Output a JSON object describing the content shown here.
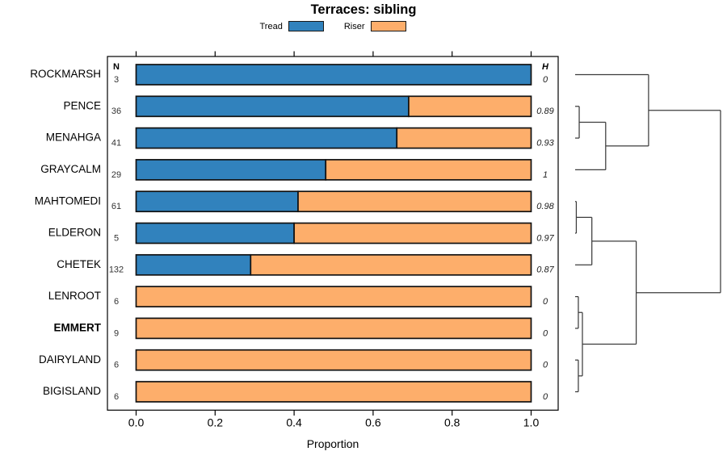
{
  "title": "Terraces: sibling",
  "xlabel": "Proportion",
  "legend": {
    "items": [
      {
        "label": "Tread",
        "color": "#3182BD"
      },
      {
        "label": "Riser",
        "color": "#FDAE6B"
      }
    ]
  },
  "chart_data": {
    "type": "bar",
    "stacked": true,
    "orientation": "horizontal",
    "title": "Terraces: sibling",
    "xlabel": "Proportion",
    "xlim": [
      0,
      1
    ],
    "x_tick_labels": [
      "0.0",
      "0.2",
      "0.4",
      "0.6",
      "0.8",
      "1.0"
    ],
    "n_header": "N",
    "h_header": "H",
    "series_names": [
      "Tread",
      "Riser"
    ],
    "colors": {
      "tread": "#3182BD",
      "riser": "#FDAE6B"
    },
    "rows": [
      {
        "label": "ROCKMARSH",
        "n": 3,
        "tread": 1.0,
        "riser": 0.0,
        "h": "0",
        "bold": false
      },
      {
        "label": "PENCE",
        "n": 36,
        "tread": 0.69,
        "riser": 0.31,
        "h": "0.89",
        "bold": false
      },
      {
        "label": "MENAHGA",
        "n": 41,
        "tread": 0.66,
        "riser": 0.34,
        "h": "0.93",
        "bold": false
      },
      {
        "label": "GRAYCALM",
        "n": 29,
        "tread": 0.48,
        "riser": 0.52,
        "h": "1",
        "bold": false
      },
      {
        "label": "MAHTOMEDI",
        "n": 61,
        "tread": 0.41,
        "riser": 0.59,
        "h": "0.98",
        "bold": false
      },
      {
        "label": "ELDERON",
        "n": 5,
        "tread": 0.4,
        "riser": 0.6,
        "h": "0.97",
        "bold": false
      },
      {
        "label": "CHETEK",
        "n": 132,
        "tread": 0.29,
        "riser": 0.71,
        "h": "0.87",
        "bold": false
      },
      {
        "label": "LENROOT",
        "n": 6,
        "tread": 0.0,
        "riser": 1.0,
        "h": "0",
        "bold": false
      },
      {
        "label": "EMMERT",
        "n": 9,
        "tread": 0.0,
        "riser": 1.0,
        "h": "0",
        "bold": true
      },
      {
        "label": "DAIRYLAND",
        "n": 6,
        "tread": 0.0,
        "riser": 1.0,
        "h": "0",
        "bold": false
      },
      {
        "label": "BIGISLAND",
        "n": 6,
        "tread": 0.0,
        "riser": 1.0,
        "h": "0",
        "bold": false
      }
    ],
    "dendrogram": {
      "height": 1.0,
      "children": [
        {
          "height": 0.505,
          "children": [
            {
              "leaf": "ROCKMARSH"
            },
            {
              "height": 0.21,
              "children": [
                {
                  "height": 0.028,
                  "children": [
                    {
                      "leaf": "PENCE"
                    },
                    {
                      "leaf": "MENAHGA"
                    }
                  ]
                },
                {
                  "leaf": "GRAYCALM"
                }
              ]
            }
          ]
        },
        {
          "height": 0.42,
          "children": [
            {
              "height": 0.115,
              "children": [
                {
                  "height": 0.008,
                  "children": [
                    {
                      "leaf": "MAHTOMEDI"
                    },
                    {
                      "leaf": "ELDERON"
                    }
                  ]
                },
                {
                  "leaf": "CHETEK"
                }
              ]
            },
            {
              "height": 0.05,
              "children": [
                {
                  "height": 0.022,
                  "children": [
                    {
                      "leaf": "LENROOT"
                    },
                    {
                      "leaf": "EMMERT"
                    }
                  ]
                },
                {
                  "height": 0.022,
                  "children": [
                    {
                      "leaf": "DAIRYLAND"
                    },
                    {
                      "leaf": "BIGISLAND"
                    }
                  ]
                }
              ]
            }
          ]
        }
      ]
    }
  }
}
